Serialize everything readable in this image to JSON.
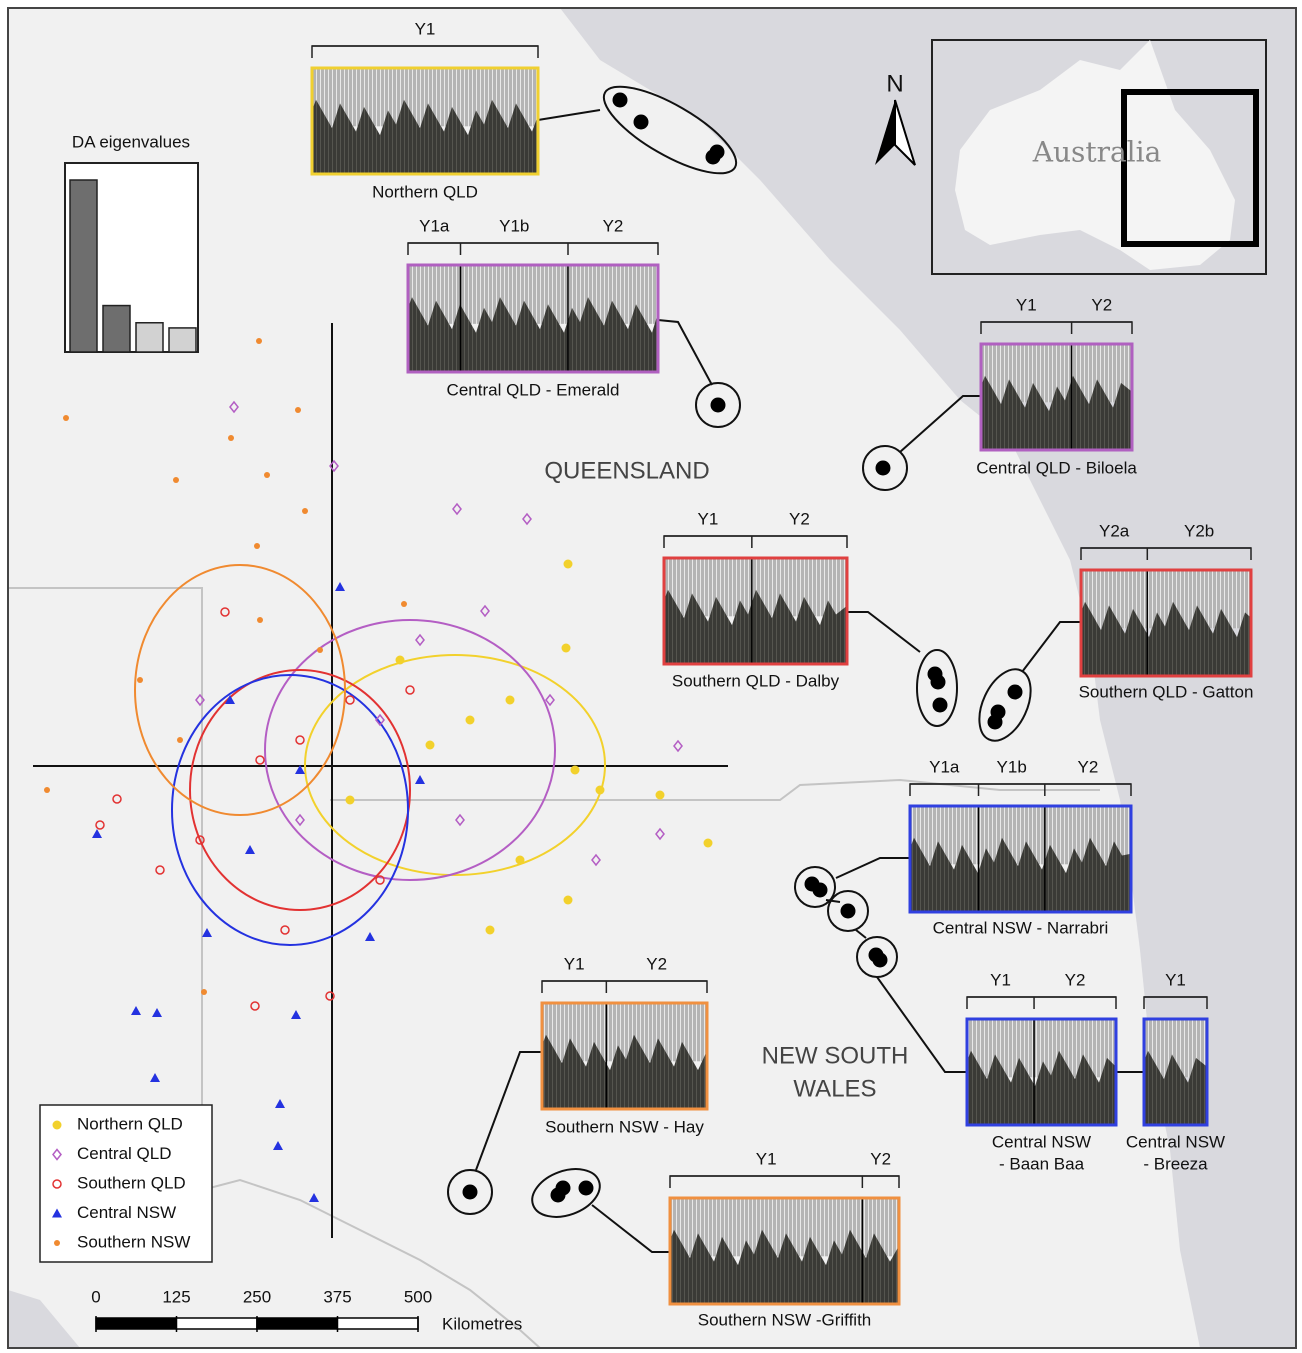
{
  "eigen_title": "DA eigenvalues",
  "eigenvalues": {
    "values": [
      1,
      0.27,
      0.17,
      0.14
    ],
    "colors": [
      "#6e6e6e",
      "#6e6e6e",
      "#d2d2d2",
      "#d2d2d2"
    ]
  },
  "regions": [
    {
      "lines": [
        "QUEENSLAND"
      ]
    },
    {
      "lines": [
        "NEW SOUTH",
        "WALES"
      ]
    }
  ],
  "inset_label": "Australia",
  "north": "N",
  "scale": {
    "ticks": [
      0,
      125,
      250,
      375,
      500
    ],
    "unit": "Kilometres"
  },
  "scatter": {
    "series": [
      {
        "name": "Northern QLD",
        "color": "#f2d12c",
        "marker": "dot",
        "x": [
          2.36,
          2.34,
          2.43,
          2.68,
          3.28,
          3.76,
          1.58,
          2.36,
          1.88,
          1.38,
          0.68,
          0.98,
          1.78,
          0.18
        ],
        "y": [
          2.02,
          1.18,
          -0.04,
          -0.24,
          -0.29,
          -0.77,
          -1.64,
          -1.34,
          -0.94,
          0.46,
          1.06,
          0.21,
          0.66,
          -0.34
        ],
        "ellipse": [
          1.23,
          0.01,
          1.5,
          1.1
        ]
      },
      {
        "name": "Central QLD",
        "color": "#b45ec4",
        "marker": "diamond",
        "x": [
          -0.98,
          0.02,
          1.25,
          1.95,
          3.46,
          3.28,
          2.64,
          1.53,
          2.18,
          0.88,
          0.48,
          1.28,
          -0.32,
          -1.32
        ],
        "y": [
          3.59,
          3.0,
          2.57,
          2.47,
          0.2,
          -0.68,
          -0.94,
          1.55,
          0.66,
          1.26,
          0.46,
          -0.54,
          -0.54,
          0.66
        ],
        "ellipse": [
          0.78,
          0.16,
          1.45,
          1.3
        ]
      },
      {
        "name": "Southern QLD",
        "color": "#e23232",
        "marker": "circle",
        "x": [
          -2.15,
          -2.32,
          -1.07,
          -0.02,
          -0.77,
          -0.47,
          -1.32,
          -0.72,
          0.18,
          0.78,
          -1.72,
          -0.32,
          0.48
        ],
        "y": [
          -0.33,
          -0.59,
          1.54,
          -2.3,
          -2.4,
          -1.64,
          -0.74,
          0.06,
          0.66,
          0.76,
          -1.04,
          0.26,
          -1.14
        ],
        "ellipse": [
          -0.32,
          -0.24,
          1.1,
          1.2
        ]
      },
      {
        "name": "Central NSW",
        "color": "#2432e0",
        "marker": "triangle",
        "x": [
          0.08,
          -2.35,
          -1.96,
          -1.75,
          -1.77,
          -0.52,
          -0.54,
          -0.18,
          -0.36,
          0.38,
          -1.25,
          -1.02,
          -0.32,
          -0.82,
          0.88
        ],
        "y": [
          1.79,
          -0.68,
          -2.45,
          -2.47,
          -3.12,
          -3.38,
          -3.8,
          -4.32,
          -2.49,
          -1.71,
          -1.67,
          0.66,
          -0.04,
          -0.84,
          -0.14
        ],
        "ellipse": [
          -0.42,
          -0.44,
          1.18,
          1.35
        ]
      },
      {
        "name": "Southern NSW",
        "color": "#f08a30",
        "marker": "small",
        "x": [
          -0.73,
          -2.66,
          -0.34,
          -1.01,
          -1.56,
          -0.65,
          -0.27,
          -0.75,
          -2.85,
          -1.28,
          -1.92,
          -1.52,
          -0.72,
          0.72,
          -0.12
        ],
        "y": [
          4.25,
          3.48,
          3.56,
          3.28,
          2.86,
          2.91,
          2.55,
          2.2,
          -0.24,
          -2.26,
          0.86,
          0.26,
          1.46,
          1.62,
          1.16
        ],
        "ellipse": [
          -0.92,
          0.76,
          1.05,
          1.25
        ]
      }
    ]
  },
  "panels": [
    {
      "title": [
        "Northern QLD"
      ],
      "labels": [
        "Y1"
      ],
      "color": "#f0d030"
    },
    {
      "title": [
        "Central QLD - Emerald"
      ],
      "labels": [
        "Y1a",
        "Y1b",
        "Y2"
      ],
      "color": "#b060c0"
    },
    {
      "title": [
        "Central QLD - Biloela"
      ],
      "labels": [
        "Y1",
        "Y2"
      ],
      "color": "#b060c0"
    },
    {
      "title": [
        "Southern QLD - Dalby"
      ],
      "labels": [
        "Y1",
        "Y2"
      ],
      "color": "#e04040"
    },
    {
      "title": [
        "Southern QLD - Gatton"
      ],
      "labels": [
        "Y2a",
        "Y2b"
      ],
      "color": "#e04040"
    },
    {
      "title": [
        "Central NSW - Narrabri"
      ],
      "labels": [
        "Y1a",
        "Y1b",
        "Y2"
      ],
      "color": "#3040e0"
    },
    {
      "title": [
        "Central NSW",
        "- Baan Baa"
      ],
      "labels": [
        "Y1",
        "Y2"
      ],
      "color": "#3040e0"
    },
    {
      "title": [
        "Central NSW",
        "- Breeza"
      ],
      "labels": [
        "Y1"
      ],
      "color": "#3040e0"
    },
    {
      "title": [
        "Southern NSW - Hay"
      ],
      "labels": [
        "Y1",
        "Y2"
      ],
      "color": "#f09040"
    },
    {
      "title": [
        "Southern NSW -Griffith"
      ],
      "labels": [
        "Y1",
        "Y2"
      ],
      "color": "#f09040"
    }
  ]
}
